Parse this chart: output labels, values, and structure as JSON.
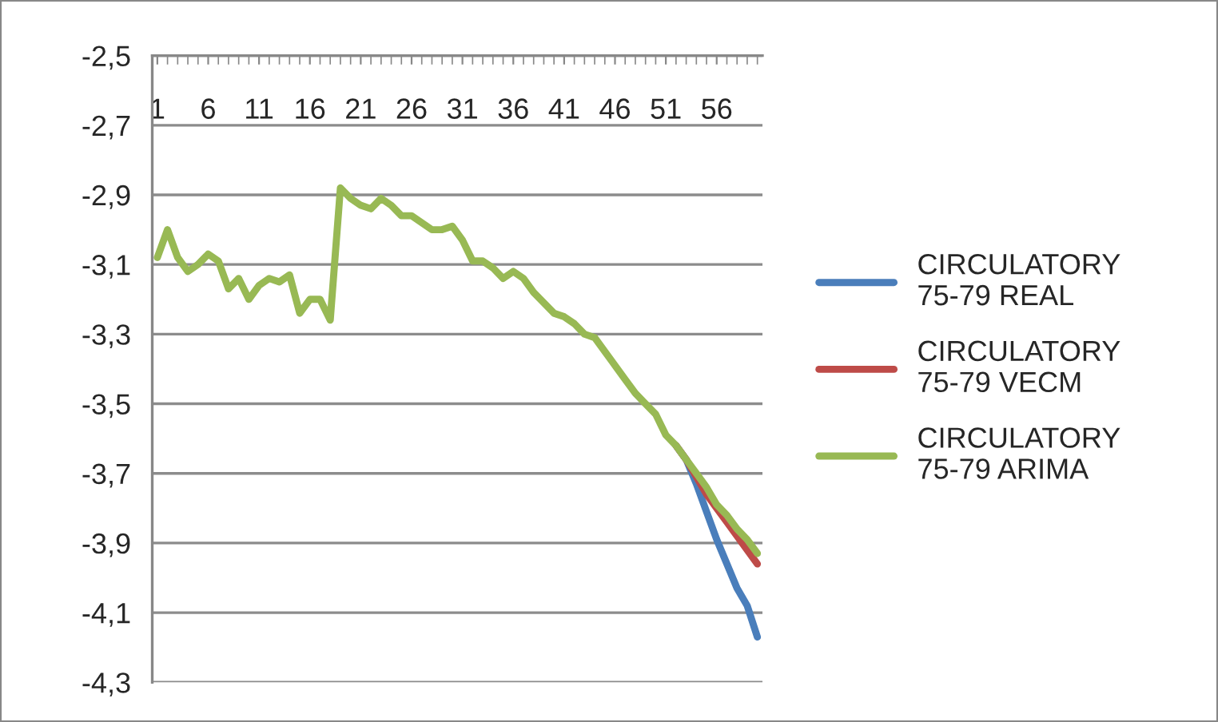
{
  "chart_data": {
    "type": "line",
    "categories": [
      "1",
      null,
      null,
      null,
      null,
      "6",
      null,
      null,
      null,
      null,
      "11",
      null,
      null,
      null,
      null,
      "16",
      null,
      null,
      null,
      null,
      "21",
      null,
      null,
      null,
      null,
      "26",
      null,
      null,
      null,
      null,
      "31",
      null,
      null,
      null,
      null,
      "36",
      null,
      null,
      null,
      null,
      "41",
      null,
      null,
      null,
      null,
      "46",
      null,
      null,
      null,
      null,
      "51",
      null,
      null,
      null,
      null,
      "56",
      null,
      null,
      null,
      null
    ],
    "series": [
      {
        "name": "CIRCULATORY 75-79 REAL",
        "color": "#4a7ebb",
        "values": [
          null,
          null,
          null,
          null,
          null,
          null,
          null,
          null,
          null,
          null,
          null,
          null,
          null,
          null,
          null,
          null,
          null,
          null,
          null,
          null,
          null,
          null,
          null,
          null,
          null,
          null,
          null,
          null,
          null,
          null,
          null,
          null,
          null,
          null,
          null,
          null,
          null,
          null,
          null,
          null,
          null,
          null,
          null,
          null,
          null,
          null,
          null,
          null,
          null,
          null,
          null,
          -3.62,
          -3.66,
          -3.73,
          -3.81,
          -3.89,
          -3.96,
          -4.03,
          -4.08,
          -4.17
        ]
      },
      {
        "name": "CIRCULATORY 75-79 VECM",
        "color": "#be4b48",
        "values": [
          null,
          null,
          null,
          null,
          null,
          null,
          null,
          null,
          null,
          null,
          null,
          null,
          null,
          null,
          null,
          null,
          null,
          null,
          null,
          null,
          null,
          null,
          null,
          null,
          null,
          null,
          null,
          null,
          null,
          null,
          null,
          null,
          null,
          null,
          null,
          null,
          null,
          null,
          null,
          null,
          null,
          null,
          null,
          null,
          null,
          null,
          null,
          null,
          null,
          null,
          null,
          -3.62,
          -3.66,
          -3.71,
          -3.76,
          -3.8,
          -3.84,
          -3.88,
          -3.92,
          -3.96
        ]
      },
      {
        "name": "CIRCULATORY 75-79 ARIMA",
        "color": "#98b954",
        "values": [
          -3.08,
          -3.0,
          -3.08,
          -3.12,
          -3.1,
          -3.07,
          -3.09,
          -3.17,
          -3.14,
          -3.2,
          -3.16,
          -3.14,
          -3.15,
          -3.13,
          -3.24,
          -3.2,
          -3.2,
          -3.26,
          -2.88,
          -2.91,
          -2.93,
          -2.94,
          -2.91,
          -2.93,
          -2.96,
          -2.96,
          -2.98,
          -3.0,
          -3.0,
          -2.99,
          -3.03,
          -3.09,
          -3.09,
          -3.11,
          -3.14,
          -3.12,
          -3.14,
          -3.18,
          -3.21,
          -3.24,
          -3.25,
          -3.27,
          -3.3,
          -3.31,
          -3.35,
          -3.39,
          -3.43,
          -3.47,
          -3.5,
          -3.53,
          -3.59,
          -3.62,
          -3.66,
          -3.7,
          -3.74,
          -3.79,
          -3.82,
          -3.86,
          -3.89,
          -3.93
        ]
      }
    ],
    "ylim": [
      -4.3,
      -2.5
    ],
    "yticks": [
      {
        "value": -4.3,
        "label": "-4,3"
      },
      {
        "value": -4.1,
        "label": "-4,1"
      },
      {
        "value": -3.9,
        "label": "-3,9"
      },
      {
        "value": -3.7,
        "label": "-3,7"
      },
      {
        "value": -3.5,
        "label": "-3,5"
      },
      {
        "value": -3.3,
        "label": "-3,3"
      },
      {
        "value": -3.1,
        "label": "-3,1"
      },
      {
        "value": -2.9,
        "label": "-2,9"
      },
      {
        "value": -2.7,
        "label": "-2,7"
      },
      {
        "value": -2.5,
        "label": "-2,5"
      }
    ],
    "grid": "y",
    "legend": "right",
    "marker": "none",
    "line_style": "solid"
  }
}
